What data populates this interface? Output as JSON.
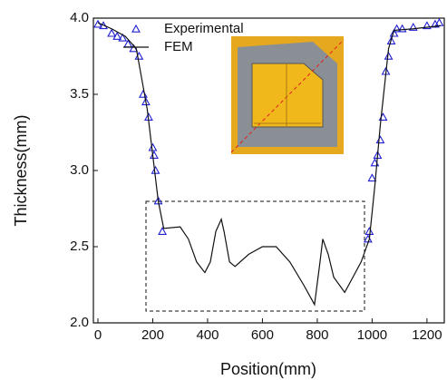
{
  "chart_data": {
    "type": "line",
    "x_label": "Position(mm)",
    "y_label": "Thickness(mm)",
    "xlim": [
      0,
      1250
    ],
    "ylim": [
      2.0,
      4.0
    ],
    "xticks": [
      0,
      200,
      400,
      600,
      800,
      1000,
      1200
    ],
    "yticks": [
      {
        "value": 2.0,
        "label": "2.0"
      },
      2.5,
      {
        "value": 3.0,
        "label": "3.0"
      },
      3.5,
      {
        "value": 4.0,
        "label": "4.0"
      }
    ],
    "legend": "top-left",
    "series": [
      {
        "name": "Experimental",
        "type": "scatter",
        "color": "#1f1fd0",
        "x": [
          0,
          20,
          50,
          70,
          90,
          110,
          130,
          150,
          165,
          175,
          185,
          200,
          205,
          210,
          220,
          235,
          985,
          990,
          1000,
          1010,
          1020,
          1030,
          1040,
          1050,
          1060,
          1070,
          1080,
          1090,
          1110,
          1150,
          1200,
          1230,
          1245
        ],
        "values": [
          3.96,
          3.95,
          3.9,
          3.88,
          3.87,
          3.83,
          3.8,
          3.75,
          3.5,
          3.45,
          3.35,
          3.15,
          3.1,
          3.0,
          2.8,
          2.6,
          2.55,
          2.6,
          2.95,
          3.05,
          3.1,
          3.2,
          3.35,
          3.65,
          3.75,
          3.85,
          3.9,
          3.93,
          3.93,
          3.94,
          3.95,
          3.96,
          3.97
        ]
      },
      {
        "name": "FEM",
        "type": "line",
        "color": "#111111",
        "x": [
          0,
          50,
          100,
          140,
          160,
          180,
          200,
          220,
          240,
          300,
          330,
          360,
          390,
          410,
          430,
          450,
          460,
          480,
          500,
          550,
          600,
          650,
          700,
          750,
          790,
          810,
          820,
          840,
          860,
          900,
          930,
          960,
          990,
          1010,
          1030,
          1060,
          1080,
          1150,
          1250
        ],
        "values": [
          3.97,
          3.93,
          3.88,
          3.8,
          3.6,
          3.4,
          3.1,
          2.8,
          2.62,
          2.63,
          2.55,
          2.4,
          2.33,
          2.4,
          2.6,
          2.68,
          2.6,
          2.4,
          2.37,
          2.45,
          2.5,
          2.5,
          2.4,
          2.25,
          2.12,
          2.4,
          2.55,
          2.45,
          2.3,
          2.2,
          2.3,
          2.4,
          2.55,
          2.9,
          3.3,
          3.8,
          3.92,
          3.93,
          3.95
        ]
      }
    ]
  }
}
